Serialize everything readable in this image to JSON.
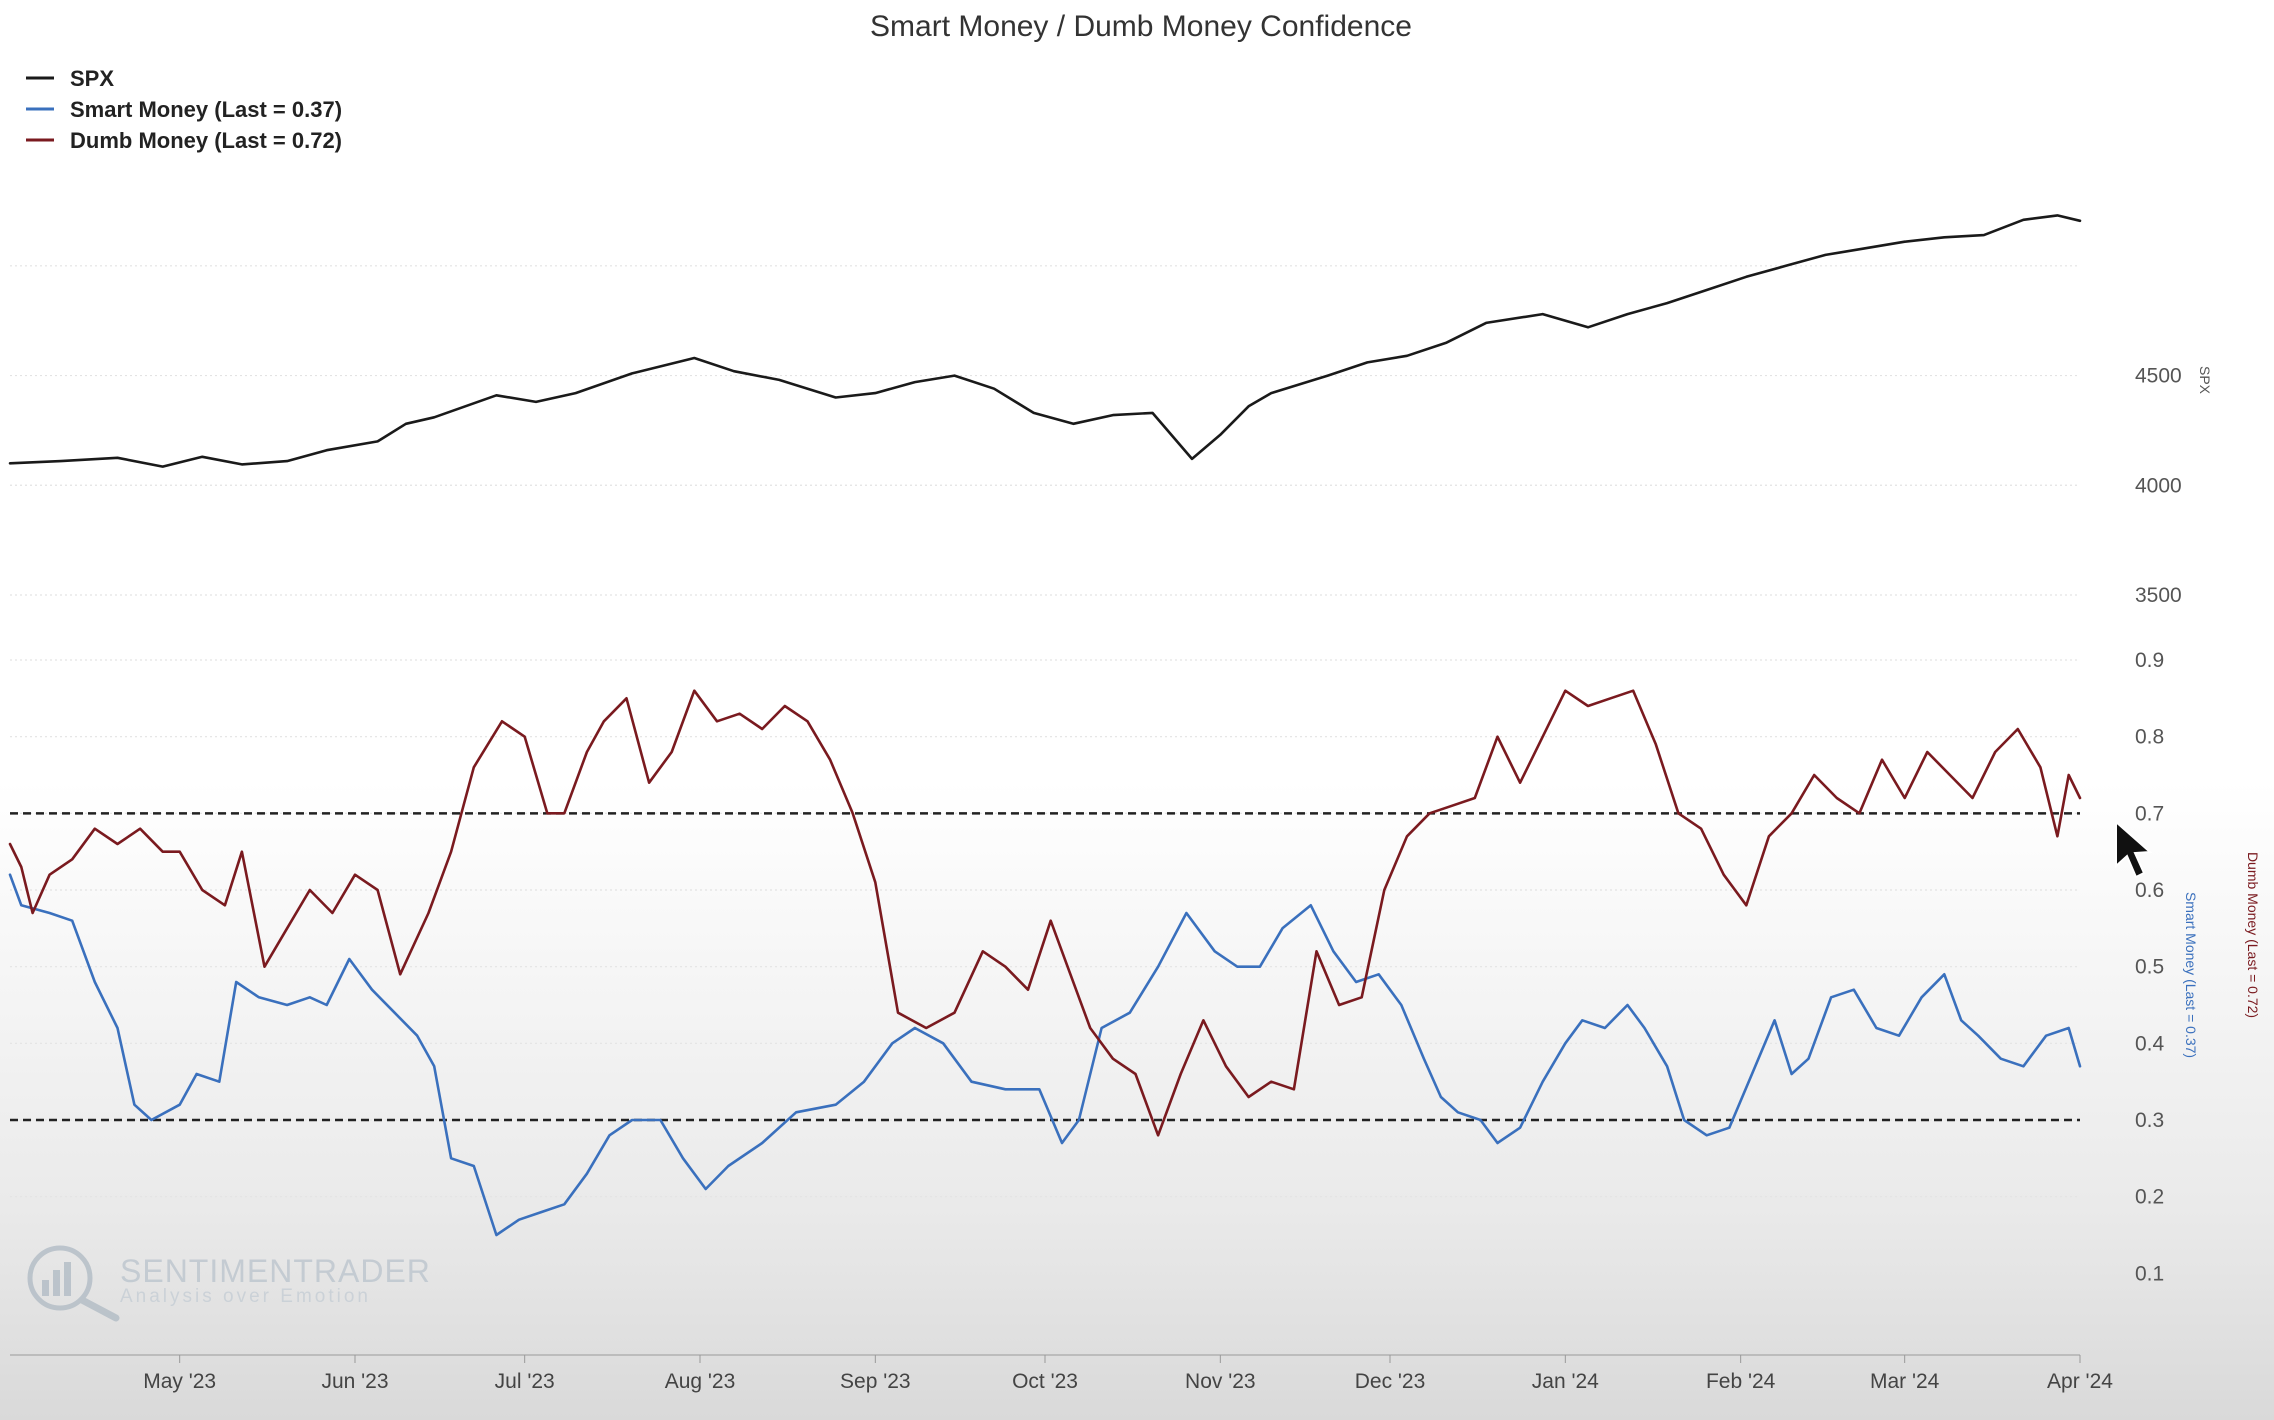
{
  "chart_data": {
    "type": "line",
    "title": "Smart Money / Dumb Money Confidence",
    "legend_position": "top-left",
    "grid": true,
    "x_tick_labels": [
      "May '23",
      "Jun '23",
      "Jul '23",
      "Aug '23",
      "Sep '23",
      "Oct '23",
      "Nov '23",
      "Dec '23",
      "Jan '24",
      "Feb '24",
      "Mar '24",
      "Apr '24"
    ],
    "x_range": [
      "2023-04-01",
      "2024-04-01"
    ],
    "panels": [
      {
        "name": "spx",
        "ylabel": "SPX",
        "ylim": [
          3500,
          5300
        ],
        "y_tick_labels": [
          "3500",
          "4000",
          "4500"
        ],
        "y_ticks": [
          3500,
          4000,
          4500
        ]
      },
      {
        "name": "sentiment",
        "ylabel_left": "Smart Money (Last = 0.37)",
        "ylabel_right": "Dumb Money (Last = 0.72)",
        "ylim": [
          0.0,
          0.9
        ],
        "y_tick_labels": [
          "0.1",
          "0.2",
          "0.3",
          "0.4",
          "0.5",
          "0.6",
          "0.7",
          "0.8",
          "0.9"
        ],
        "y_ticks": [
          0.1,
          0.2,
          0.3,
          0.4,
          0.5,
          0.6,
          0.7,
          0.8,
          0.9
        ],
        "reference_lines": [
          0.7,
          0.3
        ]
      }
    ],
    "series": [
      {
        "name": "SPX",
        "legend_label": "SPX",
        "panel": "spx",
        "color": "#1a1a1a",
        "points": [
          [
            "2023-04-01",
            4100
          ],
          [
            "2023-04-10",
            4110
          ],
          [
            "2023-04-20",
            4125
          ],
          [
            "2023-04-28",
            4085
          ],
          [
            "2023-05-05",
            4130
          ],
          [
            "2023-05-12",
            4095
          ],
          [
            "2023-05-20",
            4110
          ],
          [
            "2023-05-27",
            4160
          ],
          [
            "2023-06-05",
            4200
          ],
          [
            "2023-06-10",
            4280
          ],
          [
            "2023-06-15",
            4310
          ],
          [
            "2023-06-26",
            4410
          ],
          [
            "2023-07-03",
            4380
          ],
          [
            "2023-07-10",
            4420
          ],
          [
            "2023-07-20",
            4510
          ],
          [
            "2023-07-31",
            4580
          ],
          [
            "2023-08-07",
            4520
          ],
          [
            "2023-08-15",
            4480
          ],
          [
            "2023-08-25",
            4400
          ],
          [
            "2023-09-01",
            4420
          ],
          [
            "2023-09-08",
            4470
          ],
          [
            "2023-09-15",
            4500
          ],
          [
            "2023-09-22",
            4440
          ],
          [
            "2023-09-29",
            4330
          ],
          [
            "2023-10-06",
            4280
          ],
          [
            "2023-10-13",
            4320
          ],
          [
            "2023-10-20",
            4330
          ],
          [
            "2023-10-27",
            4120
          ],
          [
            "2023-11-01",
            4230
          ],
          [
            "2023-11-06",
            4360
          ],
          [
            "2023-11-10",
            4420
          ],
          [
            "2023-11-20",
            4500
          ],
          [
            "2023-11-27",
            4560
          ],
          [
            "2023-12-04",
            4590
          ],
          [
            "2023-12-11",
            4650
          ],
          [
            "2023-12-18",
            4740
          ],
          [
            "2023-12-28",
            4780
          ],
          [
            "2024-01-05",
            4720
          ],
          [
            "2024-01-12",
            4780
          ],
          [
            "2024-01-19",
            4830
          ],
          [
            "2024-01-26",
            4890
          ],
          [
            "2024-02-02",
            4950
          ],
          [
            "2024-02-09",
            5000
          ],
          [
            "2024-02-16",
            5050
          ],
          [
            "2024-02-23",
            5080
          ],
          [
            "2024-03-01",
            5110
          ],
          [
            "2024-03-08",
            5130
          ],
          [
            "2024-03-15",
            5140
          ],
          [
            "2024-03-22",
            5210
          ],
          [
            "2024-03-28",
            5230
          ],
          [
            "2024-04-01",
            5205
          ]
        ]
      },
      {
        "name": "Smart Money",
        "legend_label": "Smart Money (Last = 0.37)",
        "panel": "sentiment",
        "color": "#3a70bd",
        "last": 0.37,
        "points": [
          [
            "2023-04-01",
            0.62
          ],
          [
            "2023-04-03",
            0.58
          ],
          [
            "2023-04-08",
            0.57
          ],
          [
            "2023-04-12",
            0.56
          ],
          [
            "2023-04-16",
            0.48
          ],
          [
            "2023-04-20",
            0.42
          ],
          [
            "2023-04-23",
            0.32
          ],
          [
            "2023-04-26",
            0.3
          ],
          [
            "2023-05-01",
            0.32
          ],
          [
            "2023-05-04",
            0.36
          ],
          [
            "2023-05-08",
            0.35
          ],
          [
            "2023-05-11",
            0.48
          ],
          [
            "2023-05-15",
            0.46
          ],
          [
            "2023-05-20",
            0.45
          ],
          [
            "2023-05-24",
            0.46
          ],
          [
            "2023-05-27",
            0.45
          ],
          [
            "2023-05-31",
            0.51
          ],
          [
            "2023-06-04",
            0.47
          ],
          [
            "2023-06-08",
            0.44
          ],
          [
            "2023-06-12",
            0.41
          ],
          [
            "2023-06-15",
            0.37
          ],
          [
            "2023-06-18",
            0.25
          ],
          [
            "2023-06-22",
            0.24
          ],
          [
            "2023-06-26",
            0.15
          ],
          [
            "2023-06-30",
            0.17
          ],
          [
            "2023-07-04",
            0.18
          ],
          [
            "2023-07-08",
            0.19
          ],
          [
            "2023-07-12",
            0.23
          ],
          [
            "2023-07-16",
            0.28
          ],
          [
            "2023-07-20",
            0.3
          ],
          [
            "2023-07-25",
            0.3
          ],
          [
            "2023-07-29",
            0.25
          ],
          [
            "2023-08-02",
            0.21
          ],
          [
            "2023-08-06",
            0.24
          ],
          [
            "2023-08-12",
            0.27
          ],
          [
            "2023-08-18",
            0.31
          ],
          [
            "2023-08-25",
            0.32
          ],
          [
            "2023-08-30",
            0.35
          ],
          [
            "2023-09-04",
            0.4
          ],
          [
            "2023-09-08",
            0.42
          ],
          [
            "2023-09-13",
            0.4
          ],
          [
            "2023-09-18",
            0.35
          ],
          [
            "2023-09-24",
            0.34
          ],
          [
            "2023-09-30",
            0.34
          ],
          [
            "2023-10-04",
            0.27
          ],
          [
            "2023-10-07",
            0.3
          ],
          [
            "2023-10-11",
            0.42
          ],
          [
            "2023-10-16",
            0.44
          ],
          [
            "2023-10-21",
            0.5
          ],
          [
            "2023-10-26",
            0.57
          ],
          [
            "2023-10-31",
            0.52
          ],
          [
            "2023-11-04",
            0.5
          ],
          [
            "2023-11-08",
            0.5
          ],
          [
            "2023-11-12",
            0.55
          ],
          [
            "2023-11-17",
            0.58
          ],
          [
            "2023-11-21",
            0.52
          ],
          [
            "2023-11-25",
            0.48
          ],
          [
            "2023-11-29",
            0.49
          ],
          [
            "2023-12-03",
            0.45
          ],
          [
            "2023-12-07",
            0.38
          ],
          [
            "2023-12-10",
            0.33
          ],
          [
            "2023-12-13",
            0.31
          ],
          [
            "2023-12-17",
            0.3
          ],
          [
            "2023-12-20",
            0.27
          ],
          [
            "2023-12-24",
            0.29
          ],
          [
            "2023-12-28",
            0.35
          ],
          [
            "2024-01-01",
            0.4
          ],
          [
            "2024-01-04",
            0.43
          ],
          [
            "2024-01-08",
            0.42
          ],
          [
            "2024-01-12",
            0.45
          ],
          [
            "2024-01-15",
            0.42
          ],
          [
            "2024-01-19",
            0.37
          ],
          [
            "2024-01-22",
            0.3
          ],
          [
            "2024-01-26",
            0.28
          ],
          [
            "2024-01-30",
            0.29
          ],
          [
            "2024-02-03",
            0.36
          ],
          [
            "2024-02-07",
            0.43
          ],
          [
            "2024-02-10",
            0.36
          ],
          [
            "2024-02-13",
            0.38
          ],
          [
            "2024-02-17",
            0.46
          ],
          [
            "2024-02-21",
            0.47
          ],
          [
            "2024-02-25",
            0.42
          ],
          [
            "2024-02-29",
            0.41
          ],
          [
            "2024-03-04",
            0.46
          ],
          [
            "2024-03-08",
            0.49
          ],
          [
            "2024-03-11",
            0.43
          ],
          [
            "2024-03-14",
            0.41
          ],
          [
            "2024-03-18",
            0.38
          ],
          [
            "2024-03-22",
            0.37
          ],
          [
            "2024-03-26",
            0.41
          ],
          [
            "2024-03-30",
            0.42
          ],
          [
            "2024-04-01",
            0.37
          ]
        ]
      },
      {
        "name": "Dumb Money",
        "legend_label": "Dumb Money (Last = 0.72)",
        "panel": "sentiment",
        "color": "#7a1a1f",
        "last": 0.72,
        "points": [
          [
            "2023-04-01",
            0.66
          ],
          [
            "2023-04-03",
            0.63
          ],
          [
            "2023-04-05",
            0.57
          ],
          [
            "2023-04-08",
            0.62
          ],
          [
            "2023-04-12",
            0.64
          ],
          [
            "2023-04-16",
            0.68
          ],
          [
            "2023-04-20",
            0.66
          ],
          [
            "2023-04-24",
            0.68
          ],
          [
            "2023-04-28",
            0.65
          ],
          [
            "2023-05-01",
            0.65
          ],
          [
            "2023-05-05",
            0.6
          ],
          [
            "2023-05-09",
            0.58
          ],
          [
            "2023-05-12",
            0.65
          ],
          [
            "2023-05-16",
            0.5
          ],
          [
            "2023-05-20",
            0.55
          ],
          [
            "2023-05-24",
            0.6
          ],
          [
            "2023-05-28",
            0.57
          ],
          [
            "2023-06-01",
            0.62
          ],
          [
            "2023-06-05",
            0.6
          ],
          [
            "2023-06-09",
            0.49
          ],
          [
            "2023-06-14",
            0.57
          ],
          [
            "2023-06-18",
            0.65
          ],
          [
            "2023-06-22",
            0.76
          ],
          [
            "2023-06-27",
            0.82
          ],
          [
            "2023-07-01",
            0.8
          ],
          [
            "2023-07-05",
            0.7
          ],
          [
            "2023-07-08",
            0.7
          ],
          [
            "2023-07-12",
            0.78
          ],
          [
            "2023-07-15",
            0.82
          ],
          [
            "2023-07-19",
            0.85
          ],
          [
            "2023-07-23",
            0.74
          ],
          [
            "2023-07-27",
            0.78
          ],
          [
            "2023-07-31",
            0.86
          ],
          [
            "2023-08-04",
            0.82
          ],
          [
            "2023-08-08",
            0.83
          ],
          [
            "2023-08-12",
            0.81
          ],
          [
            "2023-08-16",
            0.84
          ],
          [
            "2023-08-20",
            0.82
          ],
          [
            "2023-08-24",
            0.77
          ],
          [
            "2023-08-28",
            0.7
          ],
          [
            "2023-09-01",
            0.61
          ],
          [
            "2023-09-05",
            0.44
          ],
          [
            "2023-09-10",
            0.42
          ],
          [
            "2023-09-15",
            0.44
          ],
          [
            "2023-09-20",
            0.52
          ],
          [
            "2023-09-24",
            0.5
          ],
          [
            "2023-09-28",
            0.47
          ],
          [
            "2023-10-02",
            0.56
          ],
          [
            "2023-10-05",
            0.5
          ],
          [
            "2023-10-09",
            0.42
          ],
          [
            "2023-10-13",
            0.38
          ],
          [
            "2023-10-17",
            0.36
          ],
          [
            "2023-10-21",
            0.28
          ],
          [
            "2023-10-25",
            0.36
          ],
          [
            "2023-10-29",
            0.43
          ],
          [
            "2023-11-02",
            0.37
          ],
          [
            "2023-11-06",
            0.33
          ],
          [
            "2023-11-10",
            0.35
          ],
          [
            "2023-11-14",
            0.34
          ],
          [
            "2023-11-18",
            0.52
          ],
          [
            "2023-11-22",
            0.45
          ],
          [
            "2023-11-26",
            0.46
          ],
          [
            "2023-11-30",
            0.6
          ],
          [
            "2023-12-04",
            0.67
          ],
          [
            "2023-12-08",
            0.7
          ],
          [
            "2023-12-12",
            0.71
          ],
          [
            "2023-12-16",
            0.72
          ],
          [
            "2023-12-20",
            0.8
          ],
          [
            "2023-12-24",
            0.74
          ],
          [
            "2023-12-28",
            0.8
          ],
          [
            "2024-01-01",
            0.86
          ],
          [
            "2024-01-05",
            0.84
          ],
          [
            "2024-01-09",
            0.85
          ],
          [
            "2024-01-13",
            0.86
          ],
          [
            "2024-01-17",
            0.79
          ],
          [
            "2024-01-21",
            0.7
          ],
          [
            "2024-01-25",
            0.68
          ],
          [
            "2024-01-29",
            0.62
          ],
          [
            "2024-02-02",
            0.58
          ],
          [
            "2024-02-06",
            0.67
          ],
          [
            "2024-02-10",
            0.7
          ],
          [
            "2024-02-14",
            0.75
          ],
          [
            "2024-02-18",
            0.72
          ],
          [
            "2024-02-22",
            0.7
          ],
          [
            "2024-02-26",
            0.77
          ],
          [
            "2024-03-01",
            0.72
          ],
          [
            "2024-03-05",
            0.78
          ],
          [
            "2024-03-09",
            0.75
          ],
          [
            "2024-03-13",
            0.72
          ],
          [
            "2024-03-17",
            0.78
          ],
          [
            "2024-03-21",
            0.81
          ],
          [
            "2024-03-25",
            0.76
          ],
          [
            "2024-03-28",
            0.67
          ],
          [
            "2024-03-30",
            0.75
          ],
          [
            "2024-04-01",
            0.72
          ]
        ]
      }
    ]
  },
  "watermark": {
    "name": "SENTIMENTRADER",
    "tagline": "Analysis over Emotion"
  }
}
